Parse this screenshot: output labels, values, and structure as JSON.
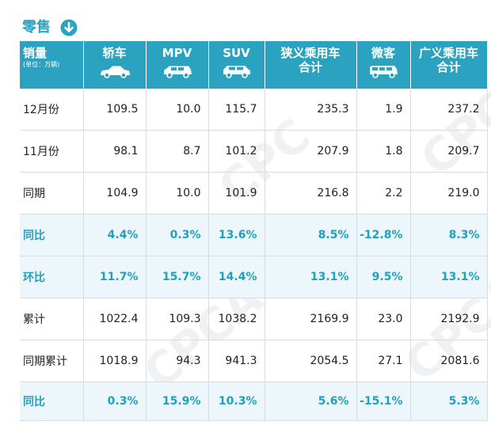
{
  "title": {
    "text": "零售",
    "icon": "down-arrow-circle-icon",
    "color": "#2ba3c2"
  },
  "header": {
    "first": {
      "main": "销量",
      "sub": "(单位：万辆)"
    },
    "columns": [
      {
        "label": "轿车",
        "icon": "sedan-icon"
      },
      {
        "label": "MPV",
        "icon": "mpv-icon"
      },
      {
        "label": "SUV",
        "icon": "suv-icon"
      },
      {
        "label": "狭义乘用车合计",
        "line1": "狭义乘用车",
        "line2": "合计"
      },
      {
        "label": "微客",
        "icon": "minivan-icon"
      },
      {
        "label": "广义乘用车合计",
        "line1": "广义乘用车",
        "line2": "合计"
      }
    ],
    "bg_color": "#2aa2c0"
  },
  "rows": [
    {
      "label": "12月份",
      "values": [
        "109.5",
        "10.0",
        "115.7",
        "235.3",
        "1.9",
        "237.2"
      ],
      "highlight": false
    },
    {
      "label": "11月份",
      "values": [
        "98.1",
        "8.7",
        "101.2",
        "207.9",
        "1.8",
        "209.7"
      ],
      "highlight": false
    },
    {
      "label": "同期",
      "values": [
        "104.9",
        "10.0",
        "101.9",
        "216.8",
        "2.2",
        "219.0"
      ],
      "highlight": false
    },
    {
      "label": "同比",
      "values": [
        "4.4%",
        "0.3%",
        "13.6%",
        "8.5%",
        "-12.8%",
        "8.3%"
      ],
      "highlight": true
    },
    {
      "label": "环比",
      "values": [
        "11.7%",
        "15.7%",
        "14.4%",
        "13.1%",
        "9.5%",
        "13.1%"
      ],
      "highlight": true
    },
    {
      "label": "累计",
      "values": [
        "1022.4",
        "109.3",
        "1038.2",
        "2169.9",
        "23.0",
        "2192.9"
      ],
      "highlight": false
    },
    {
      "label": "同期累计",
      "values": [
        "1018.9",
        "94.3",
        "941.3",
        "2054.5",
        "27.1",
        "2081.6"
      ],
      "highlight": false
    },
    {
      "label": "同比",
      "values": [
        "0.3%",
        "15.9%",
        "10.3%",
        "5.6%",
        "-15.1%",
        "5.3%"
      ],
      "highlight": true
    }
  ],
  "highlight_color": "#1fa0c0",
  "watermark": "CPCA"
}
